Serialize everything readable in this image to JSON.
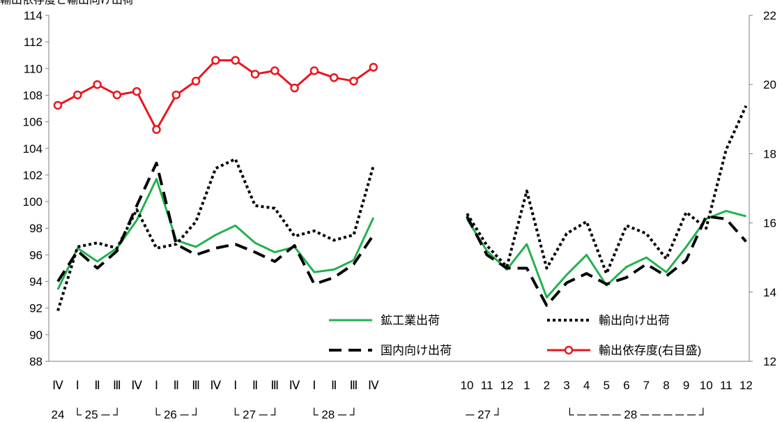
{
  "page_title": "輸出依存度と輸出向け出荷",
  "chart_data": {
    "type": "line",
    "left_axis": {
      "ylim": [
        88,
        114
      ],
      "ticks": [
        88,
        90,
        92,
        94,
        96,
        98,
        100,
        102,
        104,
        106,
        108,
        110,
        112,
        114
      ]
    },
    "right_axis": {
      "ylim": [
        12,
        22
      ],
      "ticks": [
        12,
        14,
        16,
        18,
        20,
        22
      ]
    },
    "grid": false,
    "legend_position": "bottom-right",
    "quarterly": {
      "categories": [
        "Ⅳ",
        "Ⅰ",
        "Ⅱ",
        "Ⅲ",
        "Ⅳ",
        "Ⅰ",
        "Ⅱ",
        "Ⅲ",
        "Ⅳ",
        "Ⅰ",
        "Ⅱ",
        "Ⅲ",
        "Ⅳ",
        "Ⅰ",
        "Ⅱ",
        "Ⅲ",
        "Ⅳ"
      ],
      "year_labels": [
        "24",
        "└ 25 ─ ┘",
        "└ 26 ─ ┘",
        "└ 27 ─ ┘",
        "└ 28 ─ ┘"
      ]
    },
    "monthly": {
      "categories": [
        "10",
        "11",
        "12",
        "1",
        "2",
        "3",
        "4",
        "5",
        "6",
        "7",
        "8",
        "9",
        "10",
        "11",
        "12"
      ],
      "year_labels": [
        "─ 27 ┘",
        "└ ─ ─ ─ ─ 28 ─ ─ ─ ─ ─ ┘"
      ]
    },
    "series": [
      {
        "name": "鉱工業出荷",
        "axis": "left",
        "color": "#22b14c",
        "style": "solid",
        "quarterly": [
          93.4,
          96.5,
          95.5,
          96.5,
          98.6,
          101.7,
          97.1,
          96.6,
          97.5,
          98.2,
          96.9,
          96.2,
          96.6,
          94.7,
          94.9,
          95.6,
          98.8
        ],
        "monthly": [
          98.7,
          96.3,
          94.9,
          96.8,
          92.8,
          94.5,
          96.0,
          93.7,
          95.1,
          95.8,
          94.7,
          96.6,
          98.7,
          99.3,
          98.9
        ]
      },
      {
        "name": "輸出向け出荷",
        "axis": "left",
        "color": "#000000",
        "style": "dotted",
        "quarterly": [
          91.8,
          96.6,
          96.9,
          96.5,
          99.4,
          96.5,
          96.8,
          98.5,
          102.5,
          103.2,
          99.7,
          99.5,
          97.4,
          97.8,
          97.1,
          97.5,
          102.7
        ],
        "monthly": [
          99.1,
          96.7,
          95.1,
          100.8,
          95.0,
          97.6,
          98.5,
          94.6,
          98.2,
          97.6,
          95.7,
          99.2,
          98.0,
          103.9,
          107.2
        ]
      },
      {
        "name": "国内向け出荷",
        "axis": "left",
        "color": "#000000",
        "style": "dashed",
        "quarterly": [
          94.0,
          96.3,
          95.0,
          96.3,
          99.7,
          102.9,
          96.8,
          96.0,
          96.5,
          96.8,
          96.2,
          95.5,
          96.7,
          93.8,
          94.3,
          95.3,
          97.5
        ],
        "monthly": [
          98.9,
          96.0,
          95.0,
          95.0,
          92.2,
          93.9,
          94.6,
          93.8,
          94.3,
          95.3,
          94.4,
          95.6,
          98.9,
          98.7,
          97.0
        ]
      },
      {
        "name": "輸出依存度(右目盛)",
        "axis": "right",
        "color": "#e8161c",
        "style": "solid-markers",
        "quarterly": [
          19.4,
          19.7,
          20.0,
          19.7,
          19.8,
          18.7,
          19.7,
          20.1,
          20.7,
          20.7,
          20.3,
          20.4,
          19.9,
          20.4,
          20.2,
          20.1,
          20.5
        ]
      }
    ],
    "legend": [
      "鉱工業出荷",
      "輸出向け出荷",
      "国内向け出荷",
      "輸出依存度(右目盛)"
    ]
  }
}
